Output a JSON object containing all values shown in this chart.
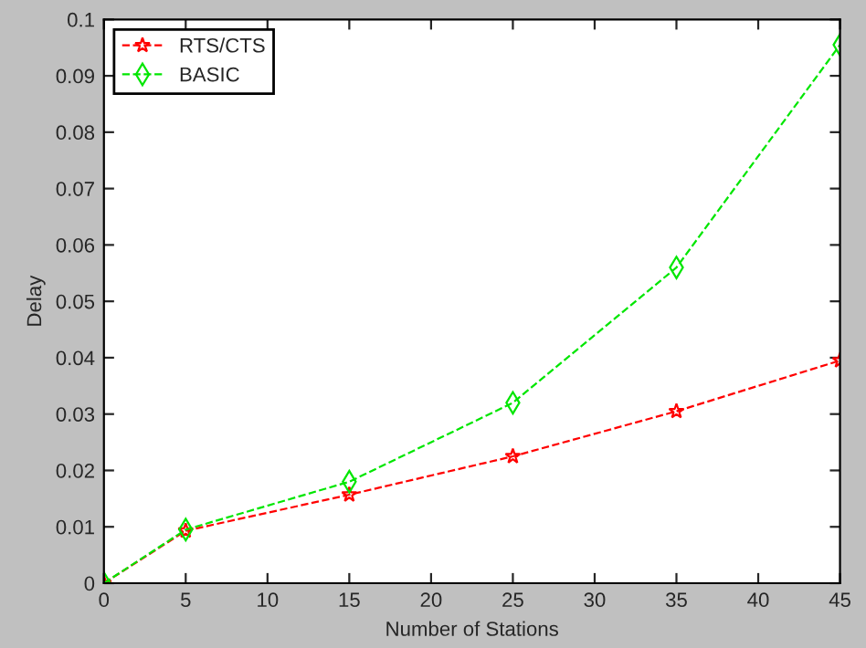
{
  "chart_data": {
    "type": "line",
    "xlabel": "Number of Stations",
    "ylabel": "Delay",
    "x": [
      0,
      5,
      15,
      25,
      35,
      45
    ],
    "series": [
      {
        "name": "RTS/CTS",
        "color": "#ff0000",
        "marker": "star",
        "line_style": "dashed",
        "values": [
          0,
          0.0093,
          0.0157,
          0.0225,
          0.0305,
          0.0395
        ]
      },
      {
        "name": "BASIC",
        "color": "#00e600",
        "marker": "diamond",
        "line_style": "dashed",
        "values": [
          0,
          0.0095,
          0.018,
          0.032,
          0.056,
          0.0955
        ]
      }
    ],
    "xlim": [
      0,
      45
    ],
    "xticks": [
      0,
      5,
      10,
      15,
      20,
      25,
      30,
      35,
      40,
      45
    ],
    "ylim": [
      0,
      0.1
    ],
    "yticks": [
      0,
      0.01,
      0.02,
      0.03,
      0.04,
      0.05,
      0.06,
      0.07,
      0.08,
      0.09,
      0.1
    ],
    "grid": false,
    "legend": "top left"
  }
}
